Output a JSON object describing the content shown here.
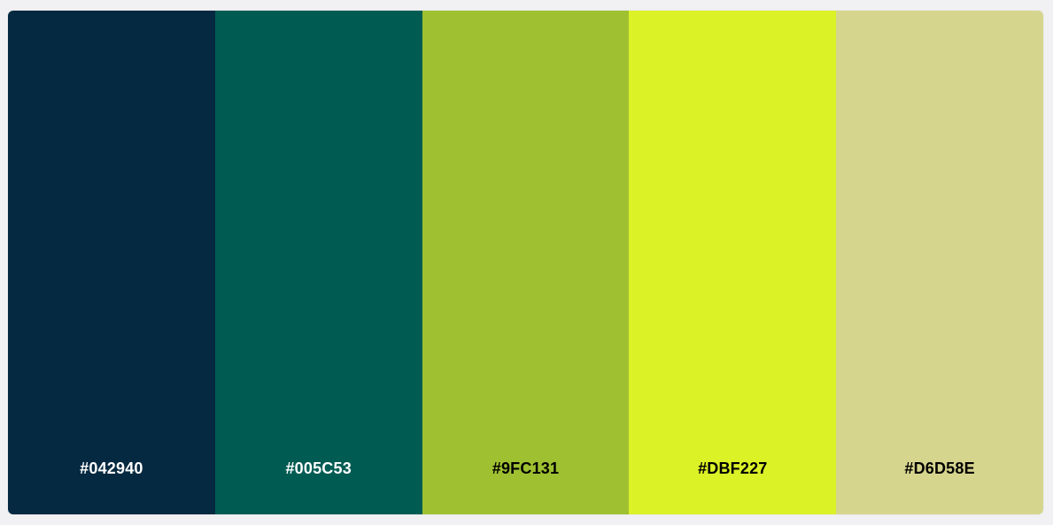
{
  "palette": {
    "swatches": [
      {
        "hex": "#042940",
        "label": "#042940",
        "label_color": "#ffffff"
      },
      {
        "hex": "#005C53",
        "label": "#005C53",
        "label_color": "#ffffff"
      },
      {
        "hex": "#9FC131",
        "label": "#9FC131",
        "label_color": "#000000"
      },
      {
        "hex": "#DBF227",
        "label": "#DBF227",
        "label_color": "#000000"
      },
      {
        "hex": "#D6D58E",
        "label": "#D6D58E",
        "label_color": "#000000"
      }
    ]
  }
}
